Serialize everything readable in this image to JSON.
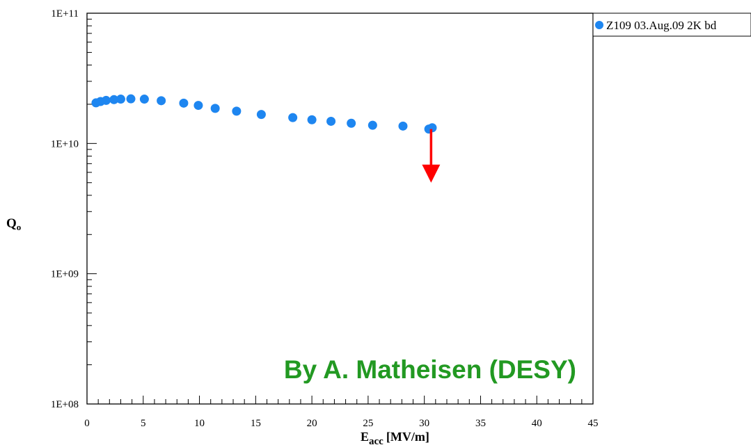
{
  "chart_data": {
    "type": "scatter",
    "xlim": [
      0,
      45
    ],
    "ylim": [
      100000000,
      100000000000
    ],
    "log_y": true,
    "grid": false,
    "legend_position": "top-right",
    "x_ticks": [
      0,
      5,
      10,
      15,
      20,
      25,
      30,
      35,
      40,
      45
    ],
    "x_tick_labels": [
      "0",
      "5",
      "10",
      "15",
      "20",
      "25",
      "30",
      "35",
      "40",
      "45"
    ],
    "y_ticks": [
      100000000,
      1000000000,
      10000000000,
      100000000000
    ],
    "y_tick_labels": [
      "1E+08",
      "1E+09",
      "1E+10",
      "1E+11"
    ],
    "xlabel_main": "E",
    "xlabel_sub": "acc",
    "xlabel_unit": "[MV/m]",
    "ylabel_main": "Q",
    "ylabel_sub": "o",
    "series": [
      {
        "name": "Z109 03.Aug.09 2K bd",
        "color": "#1e86f0",
        "x": [
          0.8,
          1.2,
          1.7,
          2.4,
          3.0,
          3.9,
          5.1,
          6.6,
          8.6,
          9.9,
          11.4,
          13.3,
          15.5,
          18.3,
          20.0,
          21.7,
          23.5,
          25.4,
          28.1,
          30.4,
          30.7
        ],
        "y": [
          20500000000,
          21000000000,
          21400000000,
          21700000000,
          21900000000,
          22000000000,
          21900000000,
          21300000000,
          20400000000,
          19600000000,
          18600000000,
          17700000000,
          16700000000,
          15800000000,
          15200000000,
          14800000000,
          14300000000,
          13800000000,
          13600000000,
          12900000000,
          13200000000
        ]
      }
    ],
    "arrow": {
      "x": 30.6,
      "y_from": 12900000000,
      "y_to": 5000000000,
      "color": "#ff0000"
    },
    "annotation": {
      "text": "By A. Matheisen (DESY)",
      "color": "#229922"
    }
  }
}
